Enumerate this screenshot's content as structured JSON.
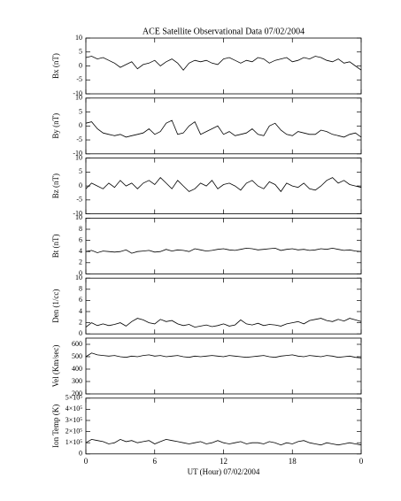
{
  "chart_data": [
    {
      "type": "line",
      "title": "ACE Satellite Observational Data   07/02/2004",
      "y_label": "Bx (nT)",
      "color": "#000000",
      "x": [
        0,
        0.5,
        1,
        1.5,
        2,
        2.5,
        3,
        3.5,
        4,
        4.5,
        5,
        5.5,
        6,
        6.5,
        7,
        7.5,
        8,
        8.5,
        9,
        9.5,
        10,
        10.5,
        11,
        11.5,
        12,
        12.5,
        13,
        13.5,
        14,
        14.5,
        15,
        15.5,
        16,
        16.5,
        17,
        17.5,
        18,
        18.5,
        19,
        19.5,
        20,
        20.5,
        21,
        21.5,
        22,
        22.5,
        23,
        23.5,
        24
      ],
      "values": [
        3,
        3.5,
        2.5,
        3,
        2,
        1,
        -0.5,
        0.5,
        1.5,
        -1,
        0.5,
        1,
        2,
        0,
        1.5,
        2.5,
        1,
        -1.5,
        1,
        2,
        1.5,
        2,
        1,
        0.5,
        2.5,
        3,
        2,
        1,
        2,
        1.5,
        3,
        2.5,
        1,
        2,
        2.5,
        3,
        1.5,
        2,
        3,
        2.5,
        3.5,
        3,
        2,
        1.5,
        2.5,
        1,
        1.5,
        0,
        -1.5
      ],
      "ylim": [
        -10,
        10
      ],
      "yticks": [
        -10,
        -5,
        0,
        5,
        10
      ]
    },
    {
      "type": "line",
      "y_label": "By (nT)",
      "color": "#000000",
      "x": [
        0,
        0.5,
        1,
        1.5,
        2,
        2.5,
        3,
        3.5,
        4,
        4.5,
        5,
        5.5,
        6,
        6.5,
        7,
        7.5,
        8,
        8.5,
        9,
        9.5,
        10,
        10.5,
        11,
        11.5,
        12,
        12.5,
        13,
        13.5,
        14,
        14.5,
        15,
        15.5,
        16,
        16.5,
        17,
        17.5,
        18,
        18.5,
        19,
        19.5,
        20,
        20.5,
        21,
        21.5,
        22,
        22.5,
        23,
        23.5,
        24
      ],
      "values": [
        1,
        1.5,
        -1,
        -2.5,
        -3,
        -3.5,
        -3,
        -4,
        -3.5,
        -3,
        -2.5,
        -1,
        -3,
        -2,
        1,
        2,
        -3,
        -2.5,
        0,
        1.5,
        -3,
        -2,
        -1,
        0,
        -3,
        -2,
        -3.5,
        -3,
        -2.5,
        -1,
        -3,
        -3.5,
        0,
        1,
        -1.5,
        -3,
        -3.5,
        -2,
        -2.5,
        -3,
        -3,
        -1.5,
        -2,
        -3,
        -3.5,
        -4,
        -3,
        -2.5,
        -4
      ],
      "ylim": [
        -10,
        10
      ],
      "yticks": [
        -10,
        -5,
        0,
        5,
        10
      ]
    },
    {
      "type": "line",
      "y_label": "Bz (nT)",
      "color": "#000000",
      "x": [
        0,
        0.5,
        1,
        1.5,
        2,
        2.5,
        3,
        3.5,
        4,
        4.5,
        5,
        5.5,
        6,
        6.5,
        7,
        7.5,
        8,
        8.5,
        9,
        9.5,
        10,
        10.5,
        11,
        11.5,
        12,
        12.5,
        13,
        13.5,
        14,
        14.5,
        15,
        15.5,
        16,
        16.5,
        17,
        17.5,
        18,
        18.5,
        19,
        19.5,
        20,
        20.5,
        21,
        21.5,
        22,
        22.5,
        23,
        23.5,
        24
      ],
      "values": [
        -1,
        1,
        0,
        -1,
        1,
        -0.5,
        2,
        0,
        1,
        -1,
        1,
        2,
        0.5,
        3,
        1,
        -1,
        2,
        0,
        -2,
        -1,
        1,
        0,
        2,
        -1,
        0.5,
        1,
        0,
        -1.5,
        1,
        2,
        0,
        -1,
        1.5,
        0.5,
        -2,
        1,
        0,
        -0.5,
        1,
        -1,
        -1.5,
        0,
        2,
        3,
        1,
        2,
        0.5,
        0,
        -0.5
      ],
      "ylim": [
        -10,
        10
      ],
      "yticks": [
        -10,
        -5,
        0,
        5,
        10
      ]
    },
    {
      "type": "line",
      "y_label": "Bt (nT)",
      "color": "#000000",
      "x": [
        0,
        0.5,
        1,
        1.5,
        2,
        2.5,
        3,
        3.5,
        4,
        4.5,
        5,
        5.5,
        6,
        6.5,
        7,
        7.5,
        8,
        8.5,
        9,
        9.5,
        10,
        10.5,
        11,
        11.5,
        12,
        12.5,
        13,
        13.5,
        14,
        14.5,
        15,
        15.5,
        16,
        16.5,
        17,
        17.5,
        18,
        18.5,
        19,
        19.5,
        20,
        20.5,
        21,
        21.5,
        22,
        22.5,
        23,
        23.5,
        24
      ],
      "values": [
        4,
        4.2,
        3.8,
        4.1,
        4,
        3.9,
        4,
        4.3,
        3.7,
        4,
        4.1,
        4.2,
        3.9,
        4,
        4.4,
        4.1,
        4.3,
        4.2,
        4,
        4.5,
        4.3,
        4.1,
        4.2,
        4.4,
        4.5,
        4.3,
        4.2,
        4.4,
        4.6,
        4.5,
        4.3,
        4.4,
        4.5,
        4.6,
        4.2,
        4.4,
        4.5,
        4.3,
        4.4,
        4.2,
        4.3,
        4.5,
        4.4,
        4.6,
        4.4,
        4.2,
        4.3,
        4.1,
        4
      ],
      "ylim": [
        0,
        10
      ],
      "yticks": [
        0,
        2,
        4,
        6,
        8,
        10
      ]
    },
    {
      "type": "line",
      "y_label": "Den (1/cc)",
      "color": "#000000",
      "x": [
        0,
        0.5,
        1,
        1.5,
        2,
        2.5,
        3,
        3.5,
        4,
        4.5,
        5,
        5.5,
        6,
        6.5,
        7,
        7.5,
        8,
        8.5,
        9,
        9.5,
        10,
        10.5,
        11,
        11.5,
        12,
        12.5,
        13,
        13.5,
        14,
        14.5,
        15,
        15.5,
        16,
        16.5,
        17,
        17.5,
        18,
        18.5,
        19,
        19.5,
        20,
        20.5,
        21,
        21.5,
        22,
        22.5,
        23,
        23.5,
        24
      ],
      "values": [
        1.2,
        2,
        1.5,
        1.8,
        1.5,
        1.7,
        2,
        1.4,
        2.2,
        2.8,
        2.5,
        2,
        1.8,
        2.6,
        2.2,
        2.4,
        1.8,
        1.5,
        1.7,
        1.2,
        1.4,
        1.6,
        1.3,
        1.5,
        1.8,
        1.4,
        1.6,
        2.5,
        1.8,
        1.6,
        1.9,
        1.5,
        1.7,
        1.6,
        1.4,
        1.8,
        2,
        2.2,
        1.8,
        2.4,
        2.6,
        2.8,
        2.4,
        2.2,
        2.6,
        2.3,
        2.8,
        2.5,
        2.2
      ],
      "ylim": [
        0,
        10
      ],
      "yticks": [
        0,
        2,
        4,
        6,
        8,
        10
      ]
    },
    {
      "type": "line",
      "y_label": "Vel (Km/sec)",
      "color": "#000000",
      "x": [
        0,
        0.5,
        1,
        1.5,
        2,
        2.5,
        3,
        3.5,
        4,
        4.5,
        5,
        5.5,
        6,
        6.5,
        7,
        7.5,
        8,
        8.5,
        9,
        9.5,
        10,
        10.5,
        11,
        11.5,
        12,
        12.5,
        13,
        13.5,
        14,
        14.5,
        15,
        15.5,
        16,
        16.5,
        17,
        17.5,
        18,
        18.5,
        19,
        19.5,
        20,
        20.5,
        21,
        21.5,
        22,
        22.5,
        23,
        23.5,
        24
      ],
      "values": [
        500,
        530,
        515,
        510,
        505,
        510,
        500,
        495,
        505,
        500,
        510,
        515,
        505,
        510,
        500,
        505,
        510,
        500,
        495,
        505,
        500,
        505,
        510,
        505,
        500,
        510,
        505,
        500,
        495,
        500,
        505,
        510,
        500,
        495,
        505,
        510,
        515,
        505,
        500,
        510,
        505,
        500,
        510,
        505,
        495,
        500,
        505,
        495,
        490
      ],
      "ylim": [
        200,
        650
      ],
      "yticks": [
        200,
        300,
        400,
        500,
        600
      ]
    },
    {
      "type": "line",
      "y_label": "Ion Temp (K)",
      "color": "#000000",
      "x_label": "UT (Hour)   07/02/2004",
      "x": [
        0,
        0.5,
        1,
        1.5,
        2,
        2.5,
        3,
        3.5,
        4,
        4.5,
        5,
        5.5,
        6,
        6.5,
        7,
        7.5,
        8,
        8.5,
        9,
        9.5,
        10,
        10.5,
        11,
        11.5,
        12,
        12.5,
        13,
        13.5,
        14,
        14.5,
        15,
        15.5,
        16,
        16.5,
        17,
        17.5,
        18,
        18.5,
        19,
        19.5,
        20,
        20.5,
        21,
        21.5,
        22,
        22.5,
        23,
        23.5,
        24
      ],
      "values": [
        100000,
        130000,
        120000,
        110000,
        90000,
        100000,
        130000,
        110000,
        120000,
        100000,
        110000,
        120000,
        90000,
        110000,
        130000,
        120000,
        110000,
        100000,
        90000,
        100000,
        110000,
        90000,
        100000,
        120000,
        100000,
        90000,
        100000,
        110000,
        90000,
        100000,
        100000,
        90000,
        110000,
        100000,
        80000,
        100000,
        90000,
        110000,
        120000,
        100000,
        90000,
        80000,
        100000,
        90000,
        80000,
        90000,
        100000,
        90000,
        80000
      ],
      "ylim": [
        0,
        500000
      ],
      "yticks": [
        0,
        {
          "value": 100000,
          "label": "1×10⁵"
        },
        {
          "value": 200000,
          "label": "2×10⁵"
        },
        {
          "value": 300000,
          "label": "3×10⁵"
        },
        {
          "value": 400000,
          "label": "4×10⁵"
        },
        {
          "value": 500000,
          "label": "5×10⁵"
        }
      ],
      "xlim": [
        0,
        24
      ],
      "xticks": [
        0,
        6,
        12,
        18,
        {
          "value": 24,
          "label": "0"
        }
      ]
    }
  ]
}
